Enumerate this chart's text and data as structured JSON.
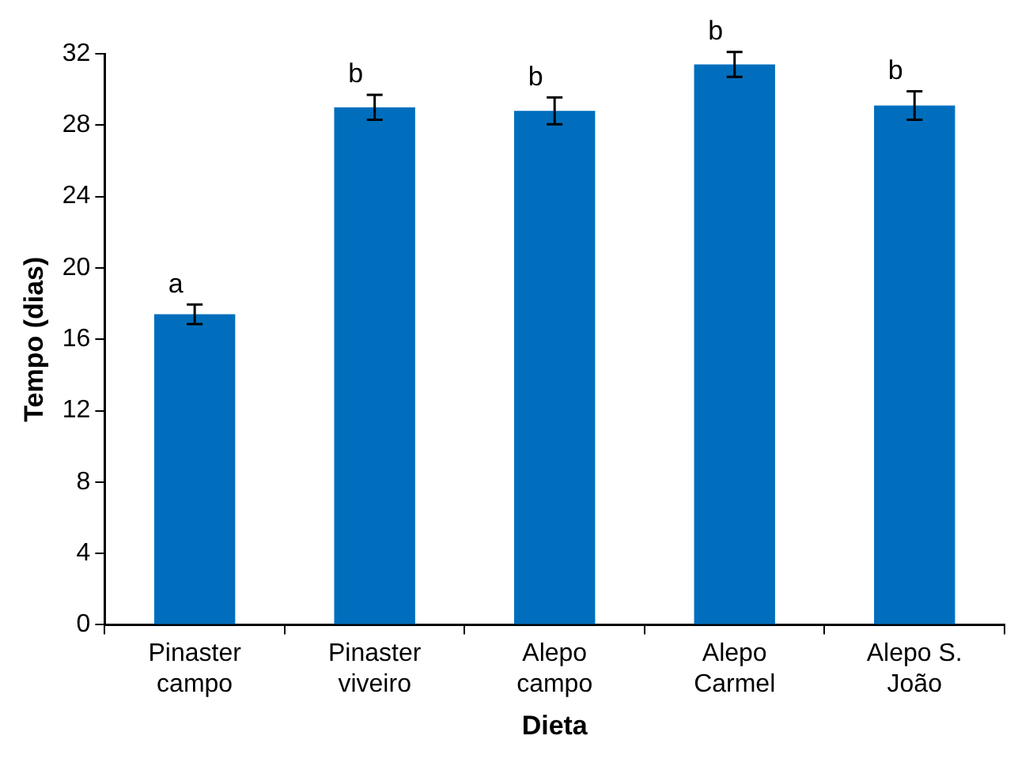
{
  "chart_data": {
    "type": "bar",
    "xlabel": "Dieta",
    "ylabel": "Tempo (dias)",
    "categories": [
      "Pinaster campo",
      "Pinaster viveiro",
      "Alepo campo",
      "Alepo Carmel",
      "Alepo S. João"
    ],
    "values": [
      17.4,
      29.0,
      28.8,
      31.4,
      29.1
    ],
    "errors": [
      0.55,
      0.7,
      0.75,
      0.7,
      0.8
    ],
    "color": "#006ebd",
    "ylim": [
      0,
      32
    ],
    "yticks": [
      0,
      4,
      8,
      12,
      16,
      20,
      24,
      28,
      32
    ],
    "grid": false,
    "legend": false,
    "annotations": [
      "a",
      "b",
      "b",
      "b",
      "b"
    ]
  }
}
